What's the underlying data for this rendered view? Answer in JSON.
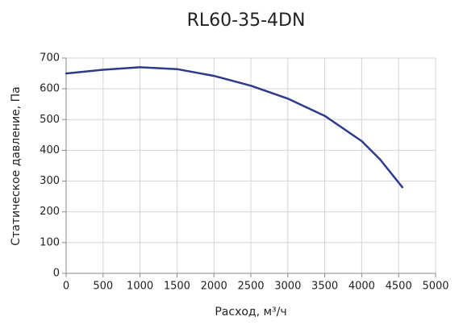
{
  "chart_data": {
    "type": "line",
    "title": "RL60-35-4DN",
    "x_label": "Расход, м³/ч",
    "y_label": "Статическое давление, Па",
    "x": [
      0,
      500,
      1000,
      1500,
      2000,
      2500,
      3000,
      3500,
      4000,
      4250,
      4550
    ],
    "values": [
      650,
      662,
      670,
      664,
      642,
      610,
      568,
      512,
      430,
      370,
      280
    ],
    "color": "#2e3a8c",
    "xlim": [
      0,
      5000
    ],
    "xticks": [
      0,
      500,
      1000,
      1500,
      2000,
      2500,
      3000,
      3500,
      4000,
      4500,
      5000
    ],
    "ylim": [
      0,
      700
    ],
    "yticks": [
      0,
      100,
      200,
      300,
      400,
      500,
      600,
      700
    ],
    "grid": true
  }
}
